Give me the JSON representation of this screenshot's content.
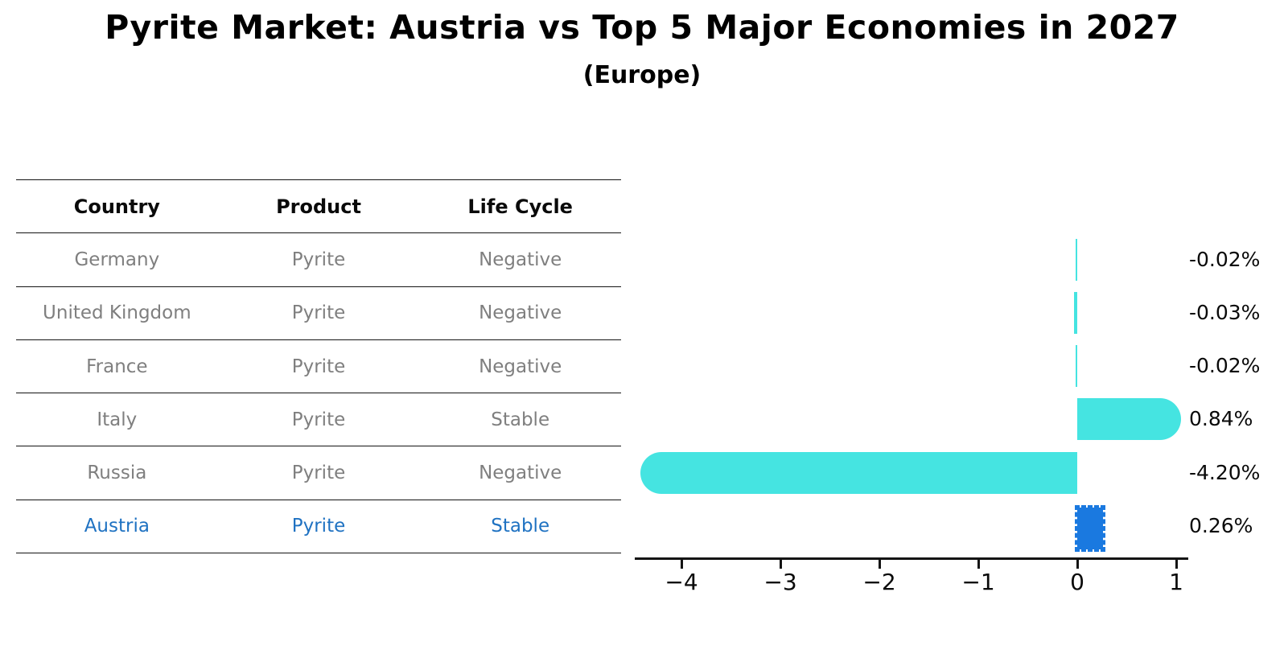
{
  "title": "Pyrite Market: Austria vs Top 5 Major Economies in 2027",
  "subtitle": "(Europe)",
  "table": {
    "headers": [
      "Country",
      "Product",
      "Life Cycle"
    ],
    "rows": [
      {
        "country": "Germany",
        "product": "Pyrite",
        "life_cycle": "Negative",
        "highlight": false
      },
      {
        "country": "United Kingdom",
        "product": "Pyrite",
        "life_cycle": "Negative",
        "highlight": false
      },
      {
        "country": "France",
        "product": "Pyrite",
        "life_cycle": "Negative",
        "highlight": false
      },
      {
        "country": "Italy",
        "product": "Pyrite",
        "life_cycle": "Stable",
        "highlight": false
      },
      {
        "country": "Russia",
        "product": "Pyrite",
        "life_cycle": "Negative",
        "highlight": false
      },
      {
        "country": "Austria",
        "product": "Pyrite",
        "life_cycle": "Stable",
        "highlight": true
      }
    ]
  },
  "chart_data": {
    "type": "bar",
    "orientation": "horizontal",
    "title": "Pyrite Market: Austria vs Top 5 Major Economies in 2027",
    "subtitle": "(Europe)",
    "categories": [
      "Germany",
      "United Kingdom",
      "France",
      "Italy",
      "Russia",
      "Austria"
    ],
    "values": [
      -0.02,
      -0.03,
      -0.02,
      0.84,
      -4.2,
      0.26
    ],
    "value_labels": [
      "-0.02%",
      "-0.03%",
      "-0.02%",
      "0.84%",
      "-4.20%",
      "0.26%"
    ],
    "x_ticks": [
      {
        "value": -4,
        "label": "−4"
      },
      {
        "value": -3,
        "label": "−3"
      },
      {
        "value": -2,
        "label": "−2"
      },
      {
        "value": -1,
        "label": "−1"
      },
      {
        "value": 0,
        "label": "0"
      },
      {
        "value": 1,
        "label": "1"
      }
    ],
    "xlim": [
      -4.47,
      1.12
    ],
    "xlabel": "",
    "ylabel": "",
    "grid": false,
    "legend": null,
    "highlight_index": 5,
    "bar_color": "#45e4e1",
    "highlight_color": "#1a79e0"
  },
  "colors": {
    "bar_cyan": "#45e4e1",
    "bar_blue": "#1a79e0",
    "highlight_text": "#1f72c2",
    "row_text": "#7f7f7f",
    "axis": "#141414"
  }
}
